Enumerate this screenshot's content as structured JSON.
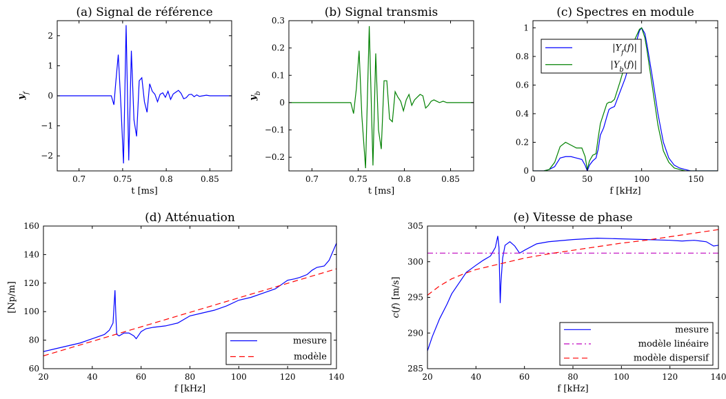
{
  "colors": {
    "blue": "#0000ff",
    "green": "#008000",
    "red": "#ff0000",
    "magenta": "#bf00bf"
  },
  "chart_data": [
    {
      "id": "a",
      "type": "line",
      "title": "(a) Signal de référence",
      "xlabel": "t [ms]",
      "ylabel": "y_f",
      "xlim": [
        0.675,
        0.875
      ],
      "ylim": [
        -2.5,
        2.5
      ],
      "xticks": [
        0.7,
        0.75,
        0.8,
        0.85
      ],
      "xticklabels": [
        "0.7",
        "0.75",
        "0.8",
        "0.85"
      ],
      "yticks": [
        -2,
        -1,
        0,
        1,
        2
      ],
      "yticklabels": [
        "−2",
        "−1",
        "0",
        "1",
        "2"
      ],
      "grid": false,
      "series": [
        {
          "color": "blue",
          "x": [
            0.675,
            0.737,
            0.74,
            0.742,
            0.745,
            0.748,
            0.751,
            0.754,
            0.757,
            0.76,
            0.763,
            0.766,
            0.769,
            0.772,
            0.775,
            0.778,
            0.781,
            0.784,
            0.787,
            0.79,
            0.793,
            0.796,
            0.799,
            0.802,
            0.805,
            0.808,
            0.811,
            0.814,
            0.817,
            0.82,
            0.823,
            0.826,
            0.829,
            0.832,
            0.835,
            0.838,
            0.842,
            0.846,
            0.85,
            0.875
          ],
          "y": [
            0,
            0,
            -0.3,
            0.4,
            1.37,
            -0.3,
            -2.25,
            2.35,
            -2.15,
            1.5,
            -0.8,
            -1.35,
            0.5,
            0.6,
            -0.2,
            -0.55,
            0.4,
            0.15,
            0.05,
            -0.2,
            0.05,
            0.1,
            -0.05,
            0.15,
            -0.12,
            0.06,
            0.12,
            0.18,
            0.08,
            -0.1,
            -0.06,
            0.04,
            0.05,
            -0.03,
            0.03,
            -0.02,
            0.0,
            0.02,
            0.0,
            0.0
          ]
        }
      ]
    },
    {
      "id": "b",
      "type": "line",
      "title": "(b) Signal transmis",
      "xlabel": "t [ms]",
      "ylabel": "y_b",
      "xlim": [
        0.675,
        0.875
      ],
      "ylim": [
        -0.25,
        0.3
      ],
      "xticks": [
        0.7,
        0.75,
        0.8,
        0.85
      ],
      "xticklabels": [
        "0.7",
        "0.75",
        "0.8",
        "0.85"
      ],
      "yticks": [
        -0.2,
        -0.1,
        0,
        0.1,
        0.2,
        0.3
      ],
      "yticklabels": [
        "−0.2",
        "−0.1",
        "0",
        "0.1",
        "0.2",
        "0.3"
      ],
      "grid": false,
      "series": [
        {
          "color": "green",
          "x": [
            0.675,
            0.742,
            0.745,
            0.748,
            0.751,
            0.754,
            0.758,
            0.762,
            0.766,
            0.769,
            0.772,
            0.775,
            0.778,
            0.781,
            0.784,
            0.787,
            0.79,
            0.793,
            0.796,
            0.799,
            0.802,
            0.805,
            0.808,
            0.811,
            0.814,
            0.817,
            0.82,
            0.823,
            0.826,
            0.829,
            0.832,
            0.835,
            0.838,
            0.842,
            0.846,
            0.85,
            0.875
          ],
          "y": [
            0,
            0,
            -0.04,
            0.05,
            0.19,
            -0.05,
            -0.24,
            0.28,
            -0.23,
            0.18,
            -0.1,
            -0.17,
            0.08,
            0.08,
            -0.06,
            -0.07,
            0.04,
            0.02,
            0.005,
            -0.03,
            0.01,
            0.03,
            -0.01,
            0.01,
            0.02,
            0.03,
            0.025,
            -0.02,
            -0.01,
            0.005,
            0.01,
            0.005,
            0.0,
            0.005,
            0.0,
            0.0,
            0.0
          ]
        }
      ]
    },
    {
      "id": "c",
      "type": "line",
      "title": "(c) Spectres en module",
      "xlabel": "f [kHz]",
      "ylabel": "",
      "xlim": [
        0,
        170
      ],
      "ylim": [
        0,
        1.05
      ],
      "xticks": [
        0,
        50,
        100,
        150
      ],
      "xticklabels": [
        "0",
        "50",
        "100",
        "150"
      ],
      "yticks": [
        0,
        0.2,
        0.4,
        0.6,
        0.8,
        1
      ],
      "yticklabels": [
        "0",
        "0.2",
        "0.4",
        "0.6",
        "0.8",
        "1"
      ],
      "grid": false,
      "legend": "top-left",
      "series": [
        {
          "name": "|Y_f(f)|",
          "color": "blue",
          "x": [
            0,
            10,
            15,
            20,
            25,
            30,
            35,
            40,
            45,
            48,
            50,
            52,
            55,
            58,
            60,
            62,
            65,
            68,
            70,
            72,
            75,
            80,
            85,
            90,
            95,
            98,
            100,
            103,
            105,
            110,
            115,
            120,
            125,
            130,
            135,
            140,
            145,
            150,
            170
          ],
          "y": [
            0,
            0,
            0.01,
            0.03,
            0.09,
            0.1,
            0.1,
            0.09,
            0.08,
            0.04,
            0.0,
            0.04,
            0.07,
            0.09,
            0.15,
            0.25,
            0.3,
            0.38,
            0.43,
            0.44,
            0.45,
            0.55,
            0.65,
            0.78,
            0.9,
            0.98,
            1.0,
            0.96,
            0.88,
            0.65,
            0.4,
            0.2,
            0.09,
            0.04,
            0.02,
            0.01,
            0.0,
            0.0,
            0.0
          ]
        },
        {
          "name": "|Y_b(f)|",
          "color": "green",
          "x": [
            0,
            10,
            15,
            20,
            25,
            30,
            35,
            40,
            45,
            48,
            50,
            52,
            55,
            58,
            60,
            62,
            65,
            68,
            70,
            72,
            75,
            80,
            85,
            90,
            95,
            98,
            100,
            103,
            105,
            110,
            115,
            120,
            125,
            130,
            135,
            140,
            145,
            150,
            170
          ],
          "y": [
            0,
            0,
            0.01,
            0.06,
            0.17,
            0.2,
            0.18,
            0.16,
            0.16,
            0.1,
            0.01,
            0.07,
            0.11,
            0.12,
            0.23,
            0.33,
            0.4,
            0.47,
            0.48,
            0.48,
            0.5,
            0.62,
            0.75,
            0.86,
            0.94,
            0.99,
            1.0,
            0.93,
            0.84,
            0.58,
            0.32,
            0.14,
            0.06,
            0.02,
            0.01,
            0.0,
            0.0,
            0.0,
            0.0
          ]
        }
      ]
    },
    {
      "id": "d",
      "type": "line",
      "title": "(d) Atténuation",
      "xlabel": "f [kHz]",
      "ylabel": "[Np/m]",
      "xlim": [
        20,
        140
      ],
      "ylim": [
        60,
        160
      ],
      "xticks": [
        20,
        40,
        60,
        80,
        100,
        120,
        140
      ],
      "xticklabels": [
        "20",
        "40",
        "60",
        "80",
        "100",
        "120",
        "140"
      ],
      "yticks": [
        60,
        80,
        100,
        120,
        140,
        160
      ],
      "yticklabels": [
        "60",
        "80",
        "100",
        "120",
        "140",
        "160"
      ],
      "grid": false,
      "legend": "bottom-right",
      "series": [
        {
          "name": "mesure",
          "color": "blue",
          "x": [
            20,
            25,
            30,
            35,
            40,
            45,
            47,
            48.5,
            49.3,
            49.6,
            50,
            51,
            53,
            55,
            57,
            58,
            60,
            62,
            65,
            70,
            75,
            80,
            85,
            90,
            95,
            100,
            105,
            110,
            115,
            120,
            123,
            125,
            128,
            130,
            132,
            135,
            137,
            140
          ],
          "y": [
            72,
            74,
            76,
            78,
            81,
            84,
            87,
            92,
            115,
            100,
            84,
            83,
            85,
            85,
            83,
            81,
            86,
            88,
            89,
            90,
            92,
            97,
            99,
            101,
            104,
            108,
            110,
            113,
            116,
            122,
            123,
            124,
            126,
            129,
            131,
            132,
            136,
            148
          ]
        },
        {
          "name": "modèle",
          "color": "red",
          "dashed": true,
          "x": [
            20,
            140
          ],
          "y": [
            69,
            130
          ]
        }
      ]
    },
    {
      "id": "e",
      "type": "line",
      "title": "(e) Vitesse de phase",
      "xlabel": "f [kHz]",
      "ylabel": "c(f) [m/s]",
      "xlim": [
        20,
        140
      ],
      "ylim": [
        285,
        305
      ],
      "xticks": [
        20,
        40,
        60,
        80,
        100,
        120,
        140
      ],
      "xticklabels": [
        "20",
        "40",
        "60",
        "80",
        "100",
        "120",
        "140"
      ],
      "yticks": [
        285,
        290,
        295,
        300,
        305
      ],
      "yticklabels": [
        "285",
        "290",
        "295",
        "300",
        "305"
      ],
      "grid": false,
      "legend": "bottom-right",
      "series": [
        {
          "name": "mesure",
          "color": "blue",
          "x": [
            20,
            22,
            25,
            28,
            30,
            33,
            36,
            40,
            43,
            46,
            48,
            49,
            49.5,
            50,
            50.3,
            51,
            52,
            54,
            56,
            58,
            60,
            65,
            70,
            80,
            90,
            100,
            110,
            120,
            125,
            130,
            135,
            138,
            140
          ],
          "y": [
            287.5,
            289.5,
            292,
            294,
            295.5,
            297,
            298.5,
            299.5,
            300.2,
            300.8,
            302,
            303.6,
            302,
            294.2,
            297,
            300.5,
            302.3,
            302.8,
            302.2,
            301.2,
            301.6,
            302.5,
            302.8,
            303.1,
            303.3,
            303.2,
            303.1,
            303.0,
            302.9,
            303.0,
            302.8,
            302.2,
            302.3
          ]
        },
        {
          "name": "modèle linéaire",
          "color": "magenta",
          "dashdot": true,
          "x": [
            20,
            140
          ],
          "y": [
            301.2,
            301.2
          ]
        },
        {
          "name": "modèle dispersif",
          "color": "red",
          "dashed": true,
          "x": [
            20,
            25,
            30,
            35,
            40,
            45,
            50,
            55,
            60,
            70,
            80,
            90,
            100,
            110,
            120,
            130,
            140
          ],
          "y": [
            295.3,
            296.6,
            297.6,
            298.3,
            298.9,
            299.3,
            299.7,
            300.1,
            300.5,
            301.1,
            301.6,
            302.1,
            302.6,
            303.0,
            303.5,
            304.0,
            304.5
          ]
        }
      ]
    }
  ]
}
